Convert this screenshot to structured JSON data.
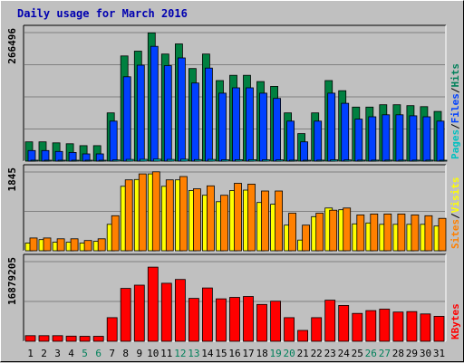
{
  "chart_data": {
    "type": "bar",
    "title": "Daily usage for March 2016",
    "categories": [
      "1",
      "2",
      "3",
      "4",
      "5",
      "6",
      "7",
      "8",
      "9",
      "10",
      "11",
      "12",
      "13",
      "14",
      "15",
      "16",
      "17",
      "18",
      "19",
      "20",
      "21",
      "22",
      "23",
      "24",
      "25",
      "26",
      "27",
      "28",
      "29",
      "30",
      "31"
    ],
    "weekend_days": [
      "5",
      "6",
      "12",
      "13",
      "19",
      "20",
      "26",
      "27"
    ],
    "panels": [
      {
        "name": "hits-files-pages",
        "max_label": "266496",
        "ymax": 266496,
        "legend": [
          {
            "text": "Pages",
            "color": "#00c0c0"
          },
          {
            "text": "Files",
            "color": "#0040ff"
          },
          {
            "text": "Hits",
            "color": "#00805a"
          }
        ],
        "series": [
          {
            "name": "Hits",
            "color": "#008040",
            "values": [
              40000,
              40000,
              38000,
              36000,
              32000,
              32000,
              100000,
              218000,
              228000,
              266000,
              222000,
              243000,
              192000,
              222000,
              167000,
              178000,
              178000,
              165000,
              155000,
              100000,
              57000,
              100000,
              167000,
              146000,
              112000,
              112000,
              117000,
              117000,
              115000,
              113000,
              103000
            ]
          },
          {
            "name": "Files",
            "color": "#0040ff",
            "values": [
              22000,
              22000,
              20000,
              18000,
              15000,
              15000,
              83000,
              175000,
              199000,
              238000,
              198000,
              214000,
              162000,
              193000,
              141000,
              152000,
              152000,
              141000,
              130000,
              83000,
              40000,
              83000,
              141000,
              120000,
              87000,
              92000,
              96000,
              96000,
              94000,
              92000,
              83000
            ]
          },
          {
            "name": "Pages",
            "color": "#00c0c0",
            "values": [
              1500,
              1500,
              1400,
              1300,
              1200,
              1200,
              2500,
              3500,
              3800,
              4200,
              3600,
              3900,
              3100,
              3500,
              2800,
              3000,
              3000,
              2800,
              2600,
              2000,
              1200,
              2000,
              2800,
              2500,
              2000,
              2000,
              2100,
              2100,
              2000,
              2000,
              1900
            ]
          }
        ]
      },
      {
        "name": "visits-sites",
        "max_label": "1845",
        "ymax": 1845,
        "legend": [
          {
            "text": "Sites",
            "color": "#ff8000"
          },
          {
            "text": "Visits",
            "color": "#ffff00"
          }
        ],
        "series": [
          {
            "name": "Visits",
            "color": "#ffff00",
            "values": [
              180,
              260,
              200,
              200,
              180,
              220,
              620,
              1510,
              1670,
              1800,
              1510,
              1660,
              1410,
              1300,
              1150,
              1410,
              1420,
              1130,
              1090,
              600,
              250,
              800,
              1000,
              960,
              630,
              650,
              620,
              620,
              620,
              620,
              580
            ]
          },
          {
            "name": "Sites",
            "color": "#ff8000",
            "values": [
              300,
              300,
              280,
              280,
              240,
              280,
              820,
              1660,
              1800,
              1850,
              1660,
              1740,
              1450,
              1520,
              1300,
              1580,
              1560,
              1400,
              1400,
              880,
              600,
              880,
              950,
              1000,
              840,
              860,
              860,
              860,
              840,
              820,
              760
            ]
          }
        ]
      },
      {
        "name": "kbytes",
        "max_label": "16879205",
        "ymax": 16879205,
        "legend": [
          {
            "text": "KBytes",
            "color": "#ff0000"
          }
        ],
        "series": [
          {
            "name": "KBytes",
            "color": "#ff0000",
            "values": [
              1180000,
              1180000,
              1180000,
              1100000,
              1050000,
              1050000,
              5000000,
              11200000,
              11900000,
              15700000,
              12300000,
              13100000,
              9100000,
              11300000,
              9000000,
              9300000,
              9500000,
              7800000,
              8500000,
              5000000,
              2300000,
              5000000,
              8700000,
              7600000,
              5900000,
              6500000,
              6800000,
              6200000,
              6300000,
              5800000,
              5300000
            ]
          }
        ]
      }
    ]
  }
}
